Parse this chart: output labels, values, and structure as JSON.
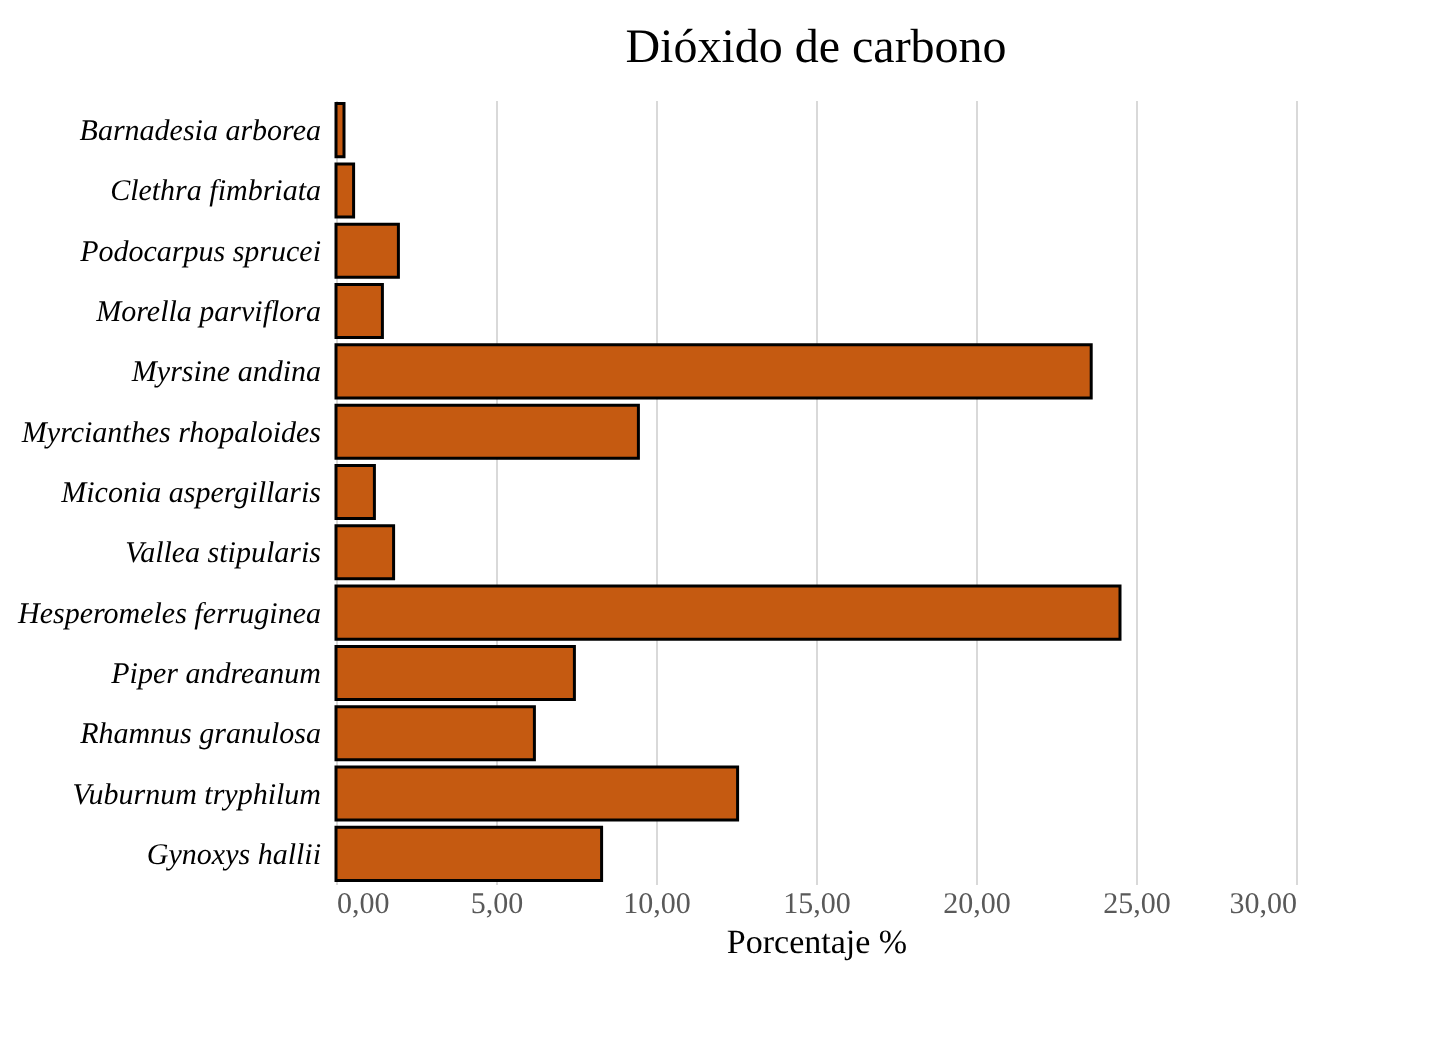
{
  "chart_data": {
    "type": "bar",
    "orientation": "horizontal",
    "title": "Dióxido de carbono",
    "xlabel": "Porcentaje %",
    "categories": [
      "Barnadesia arborea",
      "Clethra fimbriata",
      "Podocarpus sprucei",
      "Morella parviflora",
      "Myrsine andina",
      "Myrcianthes rhopaloides",
      "Miconia aspergillaris",
      "Vallea stipularis",
      "Hesperomeles ferruginea",
      "Piper andreanum",
      "Rhamnus granulosa",
      "Vuburnum tryphilum",
      "Gynoxys hallii"
    ],
    "values": [
      0.25,
      0.55,
      1.95,
      1.45,
      23.6,
      9.45,
      1.2,
      1.8,
      24.5,
      7.45,
      6.2,
      12.55,
      8.3
    ],
    "color": "#c55a11",
    "xlim": [
      0,
      30
    ],
    "xticks": [
      {
        "value": 0,
        "label": "0,00"
      },
      {
        "value": 5,
        "label": "5,00"
      },
      {
        "value": 10,
        "label": "10,00"
      },
      {
        "value": 15,
        "label": "15,00"
      },
      {
        "value": 20,
        "label": "20,00"
      },
      {
        "value": 25,
        "label": "25,00"
      },
      {
        "value": 30,
        "label": "30,00"
      }
    ],
    "grid": "x"
  }
}
